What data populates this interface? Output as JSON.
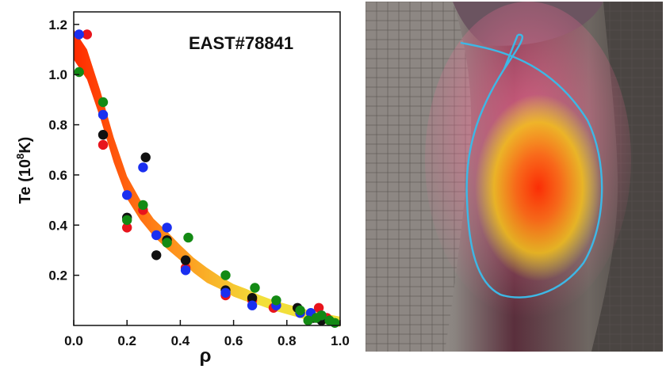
{
  "chart_data": {
    "type": "scatter",
    "annotation": "EAST#78841",
    "ylabel_main": "Te (10",
    "ylabel_sup": "8",
    "ylabel_tail": "K)",
    "xlabel": "ρ",
    "xlim": [
      0,
      1.0
    ],
    "ylim": [
      0,
      1.25
    ],
    "xticks": [
      0.0,
      0.2,
      0.4,
      0.6,
      0.8,
      1.0
    ],
    "xtick_labels": [
      "0.0",
      "0.2",
      "0.4",
      "0.6",
      "0.8",
      "1.0"
    ],
    "yticks": [
      0.2,
      0.4,
      0.6,
      0.8,
      1.0,
      1.2
    ],
    "ytick_labels": [
      "0.2",
      "0.4",
      "0.6",
      "0.8",
      "1.0",
      "1.2"
    ],
    "fit_band": {
      "x": [
        0.0,
        0.05,
        0.1,
        0.15,
        0.2,
        0.25,
        0.3,
        0.35,
        0.4,
        0.45,
        0.5,
        0.55,
        0.6,
        0.65,
        0.7,
        0.75,
        0.8,
        0.85,
        0.9,
        0.95,
        1.0
      ],
      "y": [
        1.12,
        1.04,
        0.88,
        0.7,
        0.55,
        0.46,
        0.39,
        0.34,
        0.29,
        0.24,
        0.2,
        0.17,
        0.14,
        0.12,
        0.1,
        0.08,
        0.065,
        0.05,
        0.035,
        0.025,
        0.015
      ],
      "half_width": [
        0.06,
        0.06,
        0.055,
        0.05,
        0.045,
        0.04,
        0.035,
        0.035,
        0.03,
        0.03,
        0.03,
        0.025,
        0.025,
        0.025,
        0.02,
        0.02,
        0.02,
        0.02,
        0.02,
        0.02,
        0.02
      ],
      "color_start": "#ff2a00",
      "color_mid": "#ff8c1a",
      "color_end": "#f2df3a"
    },
    "series": [
      {
        "color": "#e8141c",
        "x": [
          0.05,
          0.11,
          0.2,
          0.26,
          0.42,
          0.57,
          0.67,
          0.75,
          0.85,
          0.92,
          0.95
        ],
        "y": [
          1.16,
          0.72,
          0.39,
          0.46,
          0.23,
          0.12,
          0.1,
          0.07,
          0.05,
          0.07,
          0.03
        ]
      },
      {
        "color": "#111111",
        "x": [
          0.11,
          0.2,
          0.27,
          0.31,
          0.35,
          0.42,
          0.57,
          0.67,
          0.84,
          0.9,
          0.93
        ],
        "y": [
          0.76,
          0.43,
          0.67,
          0.28,
          0.34,
          0.26,
          0.14,
          0.11,
          0.07,
          0.03,
          0.02
        ]
      },
      {
        "color": "#1a2ff0",
        "x": [
          0.02,
          0.11,
          0.2,
          0.26,
          0.31,
          0.35,
          0.42,
          0.57,
          0.67,
          0.76,
          0.85,
          0.89,
          0.93
        ],
        "y": [
          1.16,
          0.84,
          0.52,
          0.63,
          0.36,
          0.39,
          0.22,
          0.13,
          0.08,
          0.08,
          0.05,
          0.05,
          0.04
        ]
      },
      {
        "color": "#138a14",
        "x": [
          0.02,
          0.11,
          0.2,
          0.26,
          0.35,
          0.43,
          0.57,
          0.68,
          0.76,
          0.85,
          0.88,
          0.91,
          0.93,
          0.96,
          0.98
        ],
        "y": [
          1.01,
          0.89,
          0.42,
          0.48,
          0.33,
          0.35,
          0.2,
          0.15,
          0.1,
          0.06,
          0.02,
          0.03,
          0.04,
          0.02,
          0.01
        ]
      }
    ]
  },
  "photo": {
    "overlay_colors": [
      "#ff2b00",
      "#ff6a10",
      "#f4c21a",
      "#d8e03a"
    ],
    "contour_color": "#3db8e6"
  }
}
